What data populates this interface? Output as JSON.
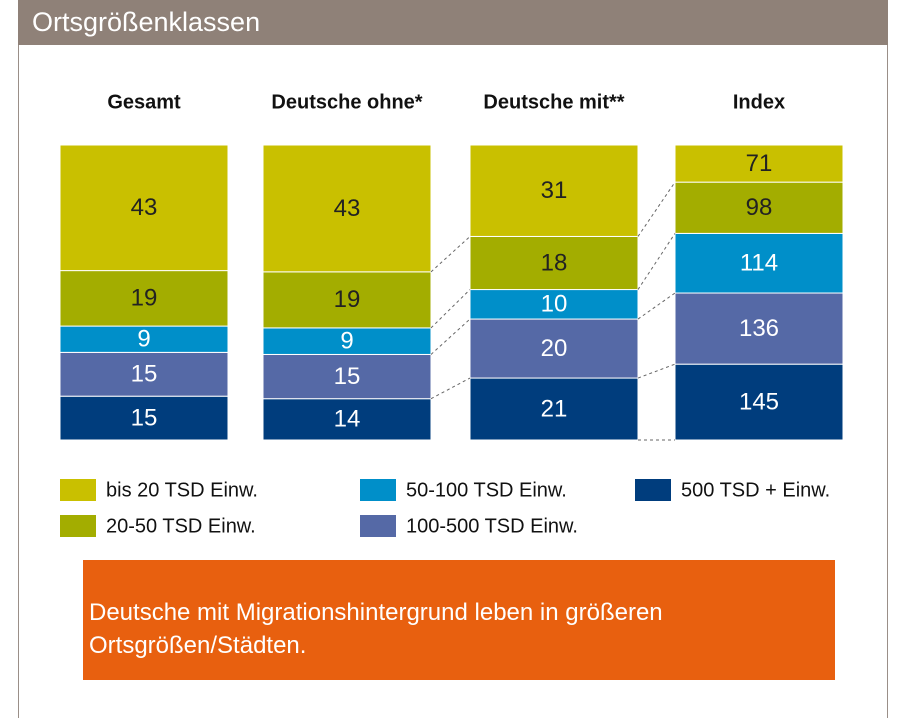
{
  "header": {
    "title": "Ortsgrößenklassen"
  },
  "chart_data": {
    "type": "stacked-bar",
    "categories": [
      "Gesamt",
      "Deutsche ohne*",
      "Deutsche mit**",
      "Index"
    ],
    "series": [
      {
        "name": "bis 20 TSD Einw.",
        "color": "#c9c000",
        "values": [
          43,
          43,
          31,
          71
        ]
      },
      {
        "name": "20-50 TSD Einw.",
        "color": "#a3ad00",
        "values": [
          19,
          19,
          18,
          98
        ]
      },
      {
        "name": "50-100 TSD Einw.",
        "color": "#008fc9",
        "values": [
          9,
          9,
          10,
          114
        ]
      },
      {
        "name": "100-500 TSD Einw.",
        "color": "#5569a6",
        "values": [
          15,
          15,
          20,
          136
        ]
      },
      {
        "name": "500 TSD + Einw.",
        "color": "#003d7d",
        "values": [
          15,
          14,
          21,
          145
        ]
      }
    ]
  },
  "note": "Deutsche mit Migrationshintergrund leben in größeren Ortsgrößen/Städten."
}
